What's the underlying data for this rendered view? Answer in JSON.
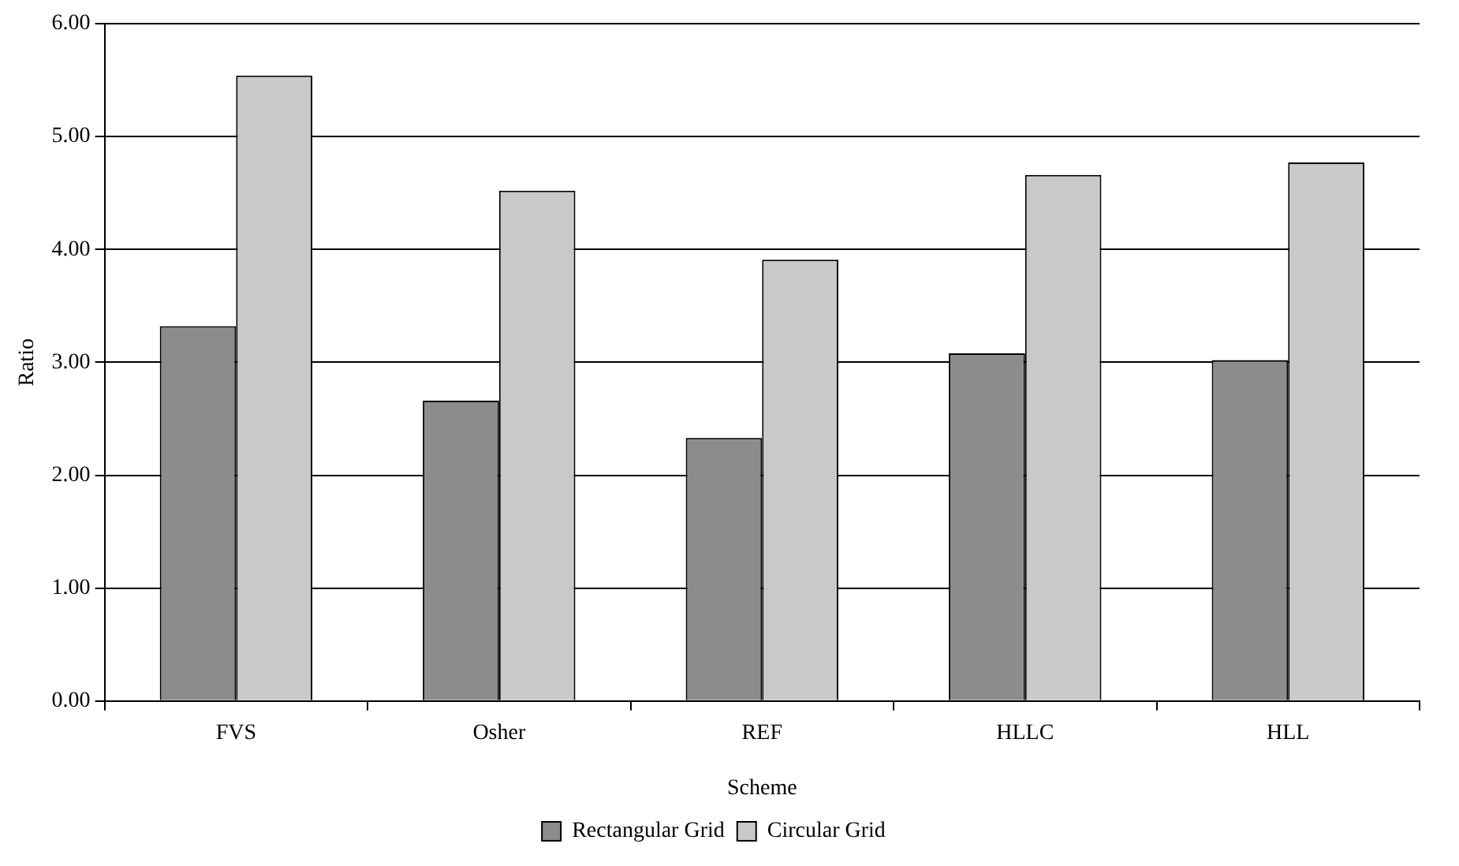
{
  "chart_data": {
    "type": "bar",
    "xlabel": "Scheme",
    "ylabel": "Ratio",
    "categories": [
      "FVS",
      "Osher",
      "REF",
      "HLLC",
      "HLL"
    ],
    "series": [
      {
        "name": "Rectangular Grid",
        "color": "#8c8c8f",
        "values": [
          3.32,
          2.66,
          2.33,
          3.08,
          3.02
        ]
      },
      {
        "name": "Circular Grid",
        "color": "#c9c9cb",
        "values": [
          5.54,
          4.52,
          3.91,
          4.66,
          4.77
        ]
      }
    ],
    "ylim": [
      0,
      6
    ],
    "yticks": [
      {
        "value": 0,
        "label": "0.00"
      },
      {
        "value": 1,
        "label": "1.00"
      },
      {
        "value": 2,
        "label": "2.00"
      },
      {
        "value": 3,
        "label": "3.00"
      },
      {
        "value": 4,
        "label": "4.00"
      },
      {
        "value": 5,
        "label": "5.00"
      },
      {
        "value": 6,
        "label": "6.00"
      }
    ],
    "grid": "y",
    "legend": "bottom"
  }
}
